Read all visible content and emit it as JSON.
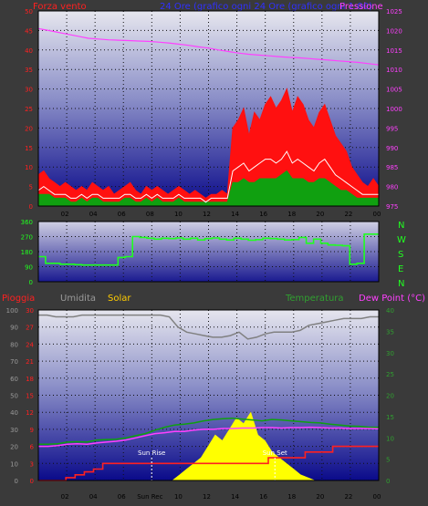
{
  "header": {
    "left": "Forza vento",
    "center": "24 Ore (grafico ogni 24 Ore (grafico ogni 1:00)",
    "right": "Pressione",
    "left_color": "#ff2020",
    "center_color": "#3030ff",
    "right_color": "#ff40ff"
  },
  "panel3_header": {
    "rain": "Pioggia",
    "humidity": "Umidita",
    "solar": "Solar",
    "temperature": "Temperatura",
    "dewpoint": "Dew Point (°C)",
    "rain_color": "#ff2020",
    "humidity_color": "#9a9a9a",
    "solar_color": "#ffcc00",
    "temperature_color": "#30a030",
    "dewpoint_color": "#ff40ff"
  },
  "direction_labels": [
    "N",
    "W",
    "S",
    "E",
    "N"
  ],
  "annotations": {
    "sunrise": "Sun Rise",
    "sunset": "Sun Set",
    "sunrec": "Sun Rec"
  },
  "chart_data": [
    {
      "type": "line",
      "id": "wind",
      "x_ticks": [
        "02",
        "04",
        "06",
        "08",
        "10",
        "12",
        "14",
        "16",
        "18",
        "20",
        "22",
        "00"
      ],
      "left_axis": {
        "ticks": [
          0,
          5,
          10,
          15,
          20,
          25,
          30,
          35,
          40,
          45,
          50
        ],
        "range": [
          0,
          50
        ],
        "color": "#ff2020"
      },
      "right_axis": {
        "ticks": [
          975,
          980,
          985,
          990,
          995,
          1000,
          1005,
          1010,
          1015,
          1020,
          1025
        ],
        "range": [
          975,
          1025
        ],
        "color": "#ff40ff"
      },
      "series": [
        {
          "name": "gust",
          "color": "#ff1010",
          "values": [
            8,
            9,
            7,
            6,
            5,
            6,
            5,
            4,
            5,
            4,
            6,
            5,
            4,
            5,
            3,
            4,
            5,
            6,
            4,
            3,
            5,
            4,
            5,
            4,
            3,
            4,
            5,
            4,
            3,
            4,
            3,
            2,
            3,
            3,
            4,
            3,
            20,
            22,
            25,
            18,
            24,
            22,
            26,
            28,
            25,
            27,
            30,
            24,
            28,
            26,
            22,
            20,
            24,
            26,
            22,
            18,
            16,
            14,
            10,
            8,
            6,
            5,
            7,
            5
          ]
        },
        {
          "name": "avg",
          "color": "#ffffff",
          "values": [
            4,
            5,
            4,
            3,
            3,
            3,
            2,
            2,
            3,
            2,
            3,
            3,
            2,
            2,
            2,
            2,
            3,
            3,
            2,
            2,
            3,
            2,
            3,
            2,
            2,
            2,
            3,
            2,
            2,
            2,
            2,
            1,
            2,
            2,
            2,
            2,
            9,
            10,
            11,
            9,
            10,
            11,
            12,
            12,
            11,
            12,
            14,
            11,
            12,
            11,
            10,
            9,
            11,
            12,
            10,
            8,
            7,
            6,
            5,
            4,
            3,
            3,
            3,
            3
          ]
        },
        {
          "name": "low",
          "color": "#10a010",
          "values": [
            3,
            3,
            3,
            2,
            2,
            2,
            1,
            1,
            2,
            1,
            2,
            2,
            1,
            1,
            1,
            1,
            2,
            2,
            1,
            1,
            2,
            1,
            2,
            1,
            1,
            1,
            2,
            1,
            1,
            1,
            1,
            1,
            1,
            1,
            1,
            1,
            6,
            6,
            7,
            6,
            6,
            7,
            7,
            7,
            7,
            8,
            9,
            7,
            7,
            7,
            6,
            6,
            7,
            7,
            6,
            5,
            4,
            4,
            3,
            2,
            2,
            2,
            2,
            2
          ]
        },
        {
          "name": "pressure",
          "color": "#ff40ff",
          "values": [
            1020.5,
            1020,
            1019.5,
            1019,
            1018.5,
            1018,
            1017.8,
            1017.6,
            1017.5,
            1017.4,
            1017.3,
            1017.2,
            1017,
            1016.8,
            1016.5,
            1016.2,
            1015.8,
            1015.5,
            1015,
            1014.6,
            1014.2,
            1013.9,
            1013.7,
            1013.5,
            1013.3,
            1013.1,
            1013,
            1012.8,
            1012.6,
            1012.4,
            1012.2,
            1012,
            1011.8,
            1011.5,
            1011.2
          ]
        }
      ]
    },
    {
      "type": "line",
      "id": "direction",
      "left_axis": {
        "ticks": [
          0,
          90,
          180,
          270,
          360
        ],
        "range": [
          0,
          360
        ]
      },
      "series": [
        {
          "name": "direction",
          "color": "#20ff20",
          "values": [
            150,
            110,
            110,
            105,
            105,
            102,
            100,
            100,
            100,
            100,
            100,
            145,
            150,
            270,
            265,
            260,
            255,
            260,
            258,
            262,
            255,
            260,
            250,
            258,
            262,
            255,
            250,
            260,
            255,
            248,
            252,
            260,
            258,
            255,
            250,
            252,
            265,
            230,
            255,
            230,
            220,
            218,
            215,
            105,
            110,
            285,
            285
          ]
        }
      ]
    },
    {
      "type": "line",
      "id": "weather",
      "x_ticks": [
        "02",
        "04",
        "06",
        "Sun Rec",
        "10",
        "12",
        "14",
        "16",
        "18",
        "20",
        "22",
        "00"
      ],
      "left_axis": {
        "ticks": [
          0,
          10,
          20,
          30,
          40,
          50,
          60,
          70,
          80,
          90,
          100
        ],
        "range": [
          0,
          100
        ],
        "color": "#9a9a9a"
      },
      "inner_axis": {
        "ticks": [
          0,
          3,
          6,
          9,
          12,
          15,
          18,
          21,
          24,
          27,
          30
        ],
        "range": [
          0,
          30
        ],
        "color": "#ff2020"
      },
      "right_axis": {
        "ticks": [
          0,
          5,
          10,
          15,
          20,
          25,
          30,
          35,
          40
        ],
        "range": [
          0,
          40
        ],
        "color": "#30a030"
      },
      "series": [
        {
          "name": "humidity",
          "color": "#808080",
          "values": [
            97,
            97,
            96,
            96,
            96,
            97,
            97,
            97,
            97,
            97,
            97,
            97,
            97,
            97,
            97,
            96,
            90,
            87,
            86,
            85,
            84,
            84,
            85,
            87,
            83,
            84,
            86,
            87,
            87,
            87,
            88,
            91,
            92,
            93,
            94,
            95,
            95,
            95,
            96,
            96
          ]
        },
        {
          "name": "temperature",
          "color": "#10a010",
          "values": [
            8.5,
            8.5,
            8.6,
            9,
            9.1,
            9,
            9.5,
            9.6,
            9.7,
            10,
            10.5,
            11,
            11.8,
            12.5,
            13,
            13.2,
            13.5,
            14,
            14.3,
            14.5,
            14.6,
            14.4,
            14.2,
            14,
            14.3,
            14.2,
            14,
            13.8,
            13.6,
            13.5,
            13.2,
            13,
            12.8,
            12.7,
            12.5,
            12.5
          ]
        },
        {
          "name": "dewpoint",
          "color": "#ff40ff",
          "values": [
            8,
            8,
            8.2,
            8.5,
            8.6,
            8.5,
            8.8,
            9,
            9.2,
            9.5,
            10,
            10.5,
            11,
            11.2,
            11.5,
            11.5,
            11.8,
            12,
            12,
            12.2,
            12.2,
            12.3,
            12.3,
            12.4,
            12.4,
            12.3,
            12.4,
            12.4,
            12.5,
            12.4,
            12.3,
            12.3,
            12.2,
            12.2,
            12.2,
            12.1
          ]
        },
        {
          "name": "rain",
          "color": "#ff2020",
          "values": [
            0,
            0,
            0,
            0.5,
            1,
            1.5,
            2,
            3,
            3,
            3,
            3,
            3,
            3,
            3,
            3,
            3,
            3,
            3,
            3,
            3,
            3,
            3,
            3,
            3,
            3,
            4,
            4,
            4,
            4,
            5,
            5,
            5,
            6,
            6,
            6,
            6,
            6
          ]
        },
        {
          "name": "solar",
          "color": "#ffff00",
          "values": [
            0,
            0,
            0,
            0,
            0,
            0,
            0,
            0,
            0,
            0,
            0,
            0,
            0,
            0,
            0,
            0,
            1,
            2,
            3,
            4,
            6,
            8,
            7,
            9,
            11,
            10,
            12,
            8,
            7,
            5,
            4,
            3,
            2,
            1,
            0.5,
            0,
            0,
            0,
            0,
            0,
            0,
            0,
            0,
            0
          ]
        }
      ]
    }
  ]
}
